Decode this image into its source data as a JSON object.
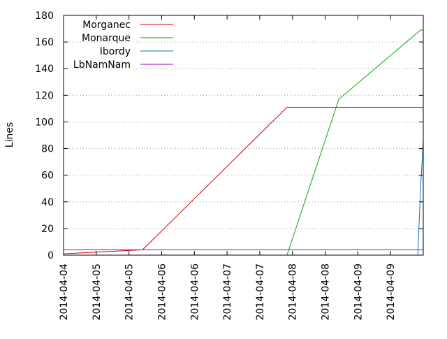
{
  "chart_data": {
    "type": "line",
    "title": "",
    "xlabel": "",
    "ylabel": "Lines",
    "ylim": [
      0,
      180
    ],
    "y_ticks": [
      0,
      20,
      40,
      60,
      80,
      100,
      120,
      140,
      160,
      180
    ],
    "xlim": [
      "2014-04-04 00:00",
      "2014-04-09 12:00"
    ],
    "x_tick_labels": [
      "2014-04-04",
      "2014-04-05",
      "2014-04-05",
      "2014-04-06",
      "2014-04-06",
      "2014-04-07",
      "2014-04-07",
      "2014-04-08",
      "2014-04-08",
      "2014-04-09",
      "2014-04-09"
    ],
    "grid": "horizontal dotted",
    "legend_placement": "top-left",
    "series": [
      {
        "name": "Morganec",
        "color": "#d40000",
        "points": [
          {
            "x": "2014-04-04 00:00",
            "y": 1
          },
          {
            "x": "2014-04-05 05:00",
            "y": 4
          },
          {
            "x": "2014-04-07 10:00",
            "y": 111
          },
          {
            "x": "2014-04-09 12:00",
            "y": 111
          }
        ]
      },
      {
        "name": "Monarque",
        "color": "#00aa00",
        "points": [
          {
            "x": "2014-04-07 10:00",
            "y": 0
          },
          {
            "x": "2014-04-08 05:00",
            "y": 117
          },
          {
            "x": "2014-04-09 11:00",
            "y": 169
          },
          {
            "x": "2014-04-09 12:00",
            "y": 169
          }
        ]
      },
      {
        "name": "Ibordy",
        "color": "#0077cc",
        "points": [
          {
            "x": "2014-04-09 10:00",
            "y": 0
          },
          {
            "x": "2014-04-09 11:00",
            "y": 50
          },
          {
            "x": "2014-04-09 12:00",
            "y": 86
          }
        ]
      },
      {
        "name": "LbNamNam",
        "color": "#9900cc",
        "points": [
          {
            "x": "2014-04-04 00:00",
            "y": 4
          },
          {
            "x": "2014-04-09 12:00",
            "y": 4
          }
        ]
      }
    ]
  }
}
